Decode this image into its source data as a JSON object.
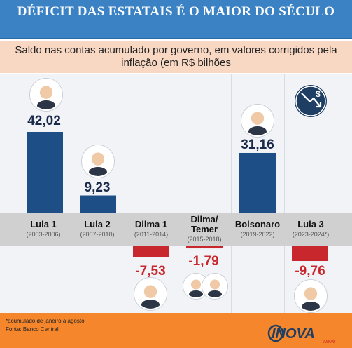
{
  "title": "DÉFICIT DAS ESTATAIS É O MAIOR DO SÉCULO",
  "subtitle": "Saldo nas contas acumulado por governo, em valores corrigidos pela inflação (em R$ bilhões",
  "footnote": "*acumulado de janeiro a agosto",
  "source": "Fonte: Banco Central",
  "brand": {
    "name": "INOVA",
    "tagline": "News"
  },
  "colors": {
    "positive": "#1e4e86",
    "negative": "#c8272d",
    "header": "#3b82c4",
    "footer": "#f5862b"
  },
  "icons": [
    "money-down-trend-icon"
  ],
  "chart_data": {
    "type": "bar",
    "title": "DÉFICIT DAS ESTATAIS É O MAIOR DO SÉCULO",
    "subtitle": "Saldo nas contas acumulado por governo, em valores corrigidos pela inflação (em R$ bilhões",
    "categories": [
      "Lula 1",
      "Lula 2",
      "Dilma 1",
      "Dilma/ Temer",
      "Bolsonaro",
      "Lula 3"
    ],
    "periods": [
      "(2003-2006)",
      "(2007-2010)",
      "(2011-2014)",
      "(2015-2018)",
      "(2019-2022)",
      "(2023-2024*)"
    ],
    "values": [
      42.02,
      9.23,
      -7.53,
      -1.79,
      31.16,
      -9.76
    ],
    "value_labels": [
      "42,02",
      "9,23",
      "-7,53",
      "-1,79",
      "31,16",
      "-9,76"
    ],
    "ylim": [
      -10,
      45
    ],
    "grid": false,
    "legend": "none"
  }
}
